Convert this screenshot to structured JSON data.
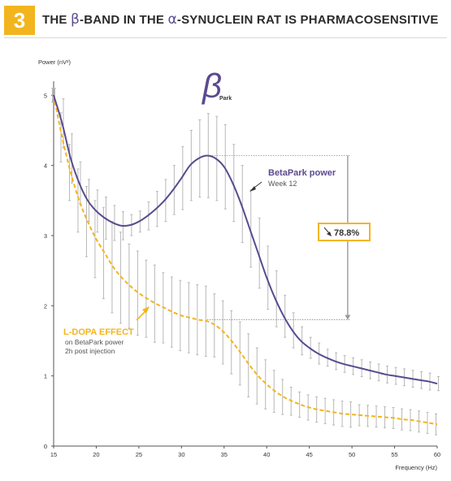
{
  "header": {
    "number": "3",
    "title_part1": "THE ",
    "title_beta": "β",
    "title_part2": "-BAND IN THE ",
    "title_alpha": "α",
    "title_part3": "-SYNUCLEIN RAT IS PHARMACOSENSITIVE"
  },
  "colors": {
    "accent": "#f2b51e",
    "betapark": "#5a4a8f",
    "ldopa": "#f2b51e",
    "error_bar": "#b8b8b8"
  },
  "chart_data": {
    "type": "line",
    "ylabel": "Power (nV²)",
    "xlabel": "Frequency (Hz)",
    "xlim": [
      15,
      60
    ],
    "ylim": [
      0,
      5.2
    ],
    "x_ticks": [
      "15",
      "20",
      "25",
      "30",
      "35",
      "40",
      "45",
      "50",
      "55",
      "60"
    ],
    "y_ticks": [
      "0",
      "1",
      "2",
      "3",
      "4",
      "5"
    ],
    "beta_symbol": "β",
    "beta_sub": "Park",
    "series": [
      {
        "name": "BetaPark power",
        "note": "Week 12",
        "style": "solid",
        "x": [
          15,
          16,
          17,
          18,
          19,
          20,
          21,
          22,
          23,
          24,
          25,
          26,
          27,
          28,
          29,
          30,
          31,
          32,
          33,
          34,
          35,
          36,
          37,
          38,
          39,
          40,
          41,
          42,
          43,
          44,
          45,
          46,
          47,
          48,
          49,
          50,
          51,
          52,
          53,
          54,
          55,
          56,
          57,
          58,
          59,
          60
        ],
        "y": [
          5.0,
          4.6,
          4.1,
          3.75,
          3.5,
          3.35,
          3.25,
          3.18,
          3.14,
          3.15,
          3.2,
          3.28,
          3.38,
          3.5,
          3.65,
          3.82,
          4.0,
          4.1,
          4.14,
          4.1,
          3.98,
          3.75,
          3.45,
          3.1,
          2.75,
          2.4,
          2.1,
          1.85,
          1.65,
          1.5,
          1.4,
          1.32,
          1.26,
          1.21,
          1.17,
          1.14,
          1.11,
          1.08,
          1.05,
          1.02,
          1.0,
          0.98,
          0.96,
          0.94,
          0.92,
          0.89
        ],
        "err": [
          0.1,
          0.35,
          0.35,
          0.3,
          0.3,
          0.3,
          0.3,
          0.25,
          0.2,
          0.15,
          0.15,
          0.2,
          0.25,
          0.3,
          0.35,
          0.45,
          0.5,
          0.55,
          0.6,
          0.6,
          0.6,
          0.55,
          0.55,
          0.55,
          0.5,
          0.45,
          0.4,
          0.3,
          0.25,
          0.2,
          0.15,
          0.15,
          0.12,
          0.12,
          0.12,
          0.12,
          0.12,
          0.12,
          0.12,
          0.12,
          0.12,
          0.12,
          0.12,
          0.12,
          0.12,
          0.1
        ]
      },
      {
        "name": "L-DOPA EFFECT",
        "note_line1": "on BetaPark power",
        "note_line2": "2h post injection",
        "style": "dashed",
        "x": [
          15,
          16,
          17,
          18,
          19,
          20,
          21,
          22,
          23,
          24,
          25,
          26,
          27,
          28,
          29,
          30,
          31,
          32,
          33,
          34,
          35,
          36,
          37,
          38,
          39,
          40,
          41,
          42,
          43,
          44,
          45,
          46,
          47,
          48,
          49,
          50,
          51,
          52,
          53,
          54,
          55,
          56,
          57,
          58,
          59,
          60
        ],
        "y": [
          5.0,
          4.4,
          3.9,
          3.5,
          3.2,
          2.95,
          2.75,
          2.55,
          2.4,
          2.28,
          2.18,
          2.1,
          2.03,
          1.97,
          1.91,
          1.86,
          1.83,
          1.8,
          1.78,
          1.72,
          1.62,
          1.48,
          1.32,
          1.15,
          1.0,
          0.88,
          0.78,
          0.7,
          0.64,
          0.59,
          0.55,
          0.52,
          0.5,
          0.48,
          0.46,
          0.45,
          0.44,
          0.43,
          0.42,
          0.41,
          0.4,
          0.38,
          0.37,
          0.35,
          0.33,
          0.31
        ],
        "err": [
          0.1,
          0.35,
          0.4,
          0.45,
          0.5,
          0.55,
          0.65,
          0.65,
          0.65,
          0.6,
          0.6,
          0.55,
          0.55,
          0.5,
          0.5,
          0.5,
          0.5,
          0.5,
          0.5,
          0.45,
          0.45,
          0.45,
          0.45,
          0.45,
          0.4,
          0.35,
          0.3,
          0.25,
          0.2,
          0.18,
          0.18,
          0.18,
          0.18,
          0.18,
          0.18,
          0.18,
          0.15,
          0.15,
          0.15,
          0.15,
          0.15,
          0.15,
          0.15,
          0.15,
          0.15,
          0.15
        ]
      }
    ],
    "annotation": {
      "label": "78.8%",
      "from_y": 4.14,
      "to_y": 1.8
    }
  }
}
